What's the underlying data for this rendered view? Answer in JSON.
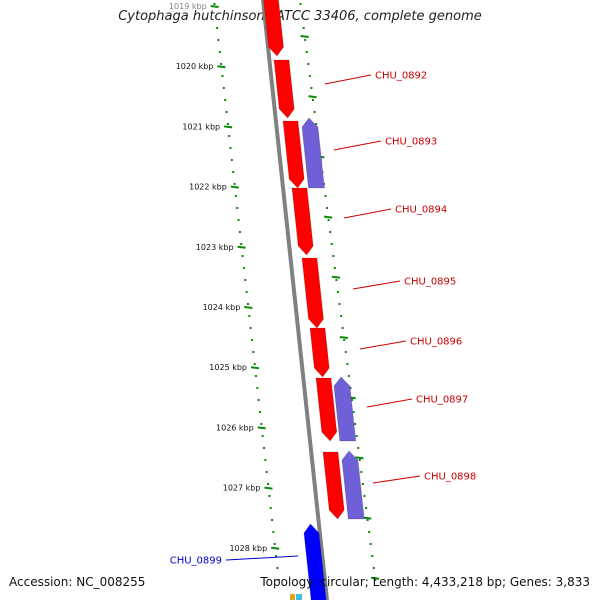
{
  "title": "Cytophaga hutchinsonii ATCC 33406, complete genome",
  "accession": "Accession: NC_008255",
  "topology": "Topology: circular; Length: 4,433,218 bp; Genes: 3,833",
  "colors": {
    "forward_gene": "#ff0000",
    "reverse_gene": "#7060d8",
    "highlight_gene": "#0000ff",
    "backbone": "#808080",
    "ruler": "#0a8a0a",
    "forward_label": "#cc0000",
    "highlight_label": "#0000cc"
  },
  "ruler_labels": [
    "1019 kbp",
    "1020 kbp",
    "1021 kbp",
    "1022 kbp",
    "1023 kbp",
    "1024 kbp",
    "1025 kbp",
    "1026 kbp",
    "1027 kbp",
    "1028 kbp"
  ],
  "gene_labels": [
    {
      "name": "CHU_0892",
      "side": "right",
      "color": "#cc0000"
    },
    {
      "name": "CHU_0893",
      "side": "right",
      "color": "#cc0000"
    },
    {
      "name": "CHU_0894",
      "side": "right",
      "color": "#cc0000"
    },
    {
      "name": "CHU_0895",
      "side": "right",
      "color": "#cc0000"
    },
    {
      "name": "CHU_0896",
      "side": "right",
      "color": "#cc0000"
    },
    {
      "name": "CHU_0897",
      "side": "right",
      "color": "#cc0000"
    },
    {
      "name": "CHU_0898",
      "side": "right",
      "color": "#cc0000"
    },
    {
      "name": "CHU_0899",
      "side": "left",
      "color": "#0000cc"
    }
  ]
}
